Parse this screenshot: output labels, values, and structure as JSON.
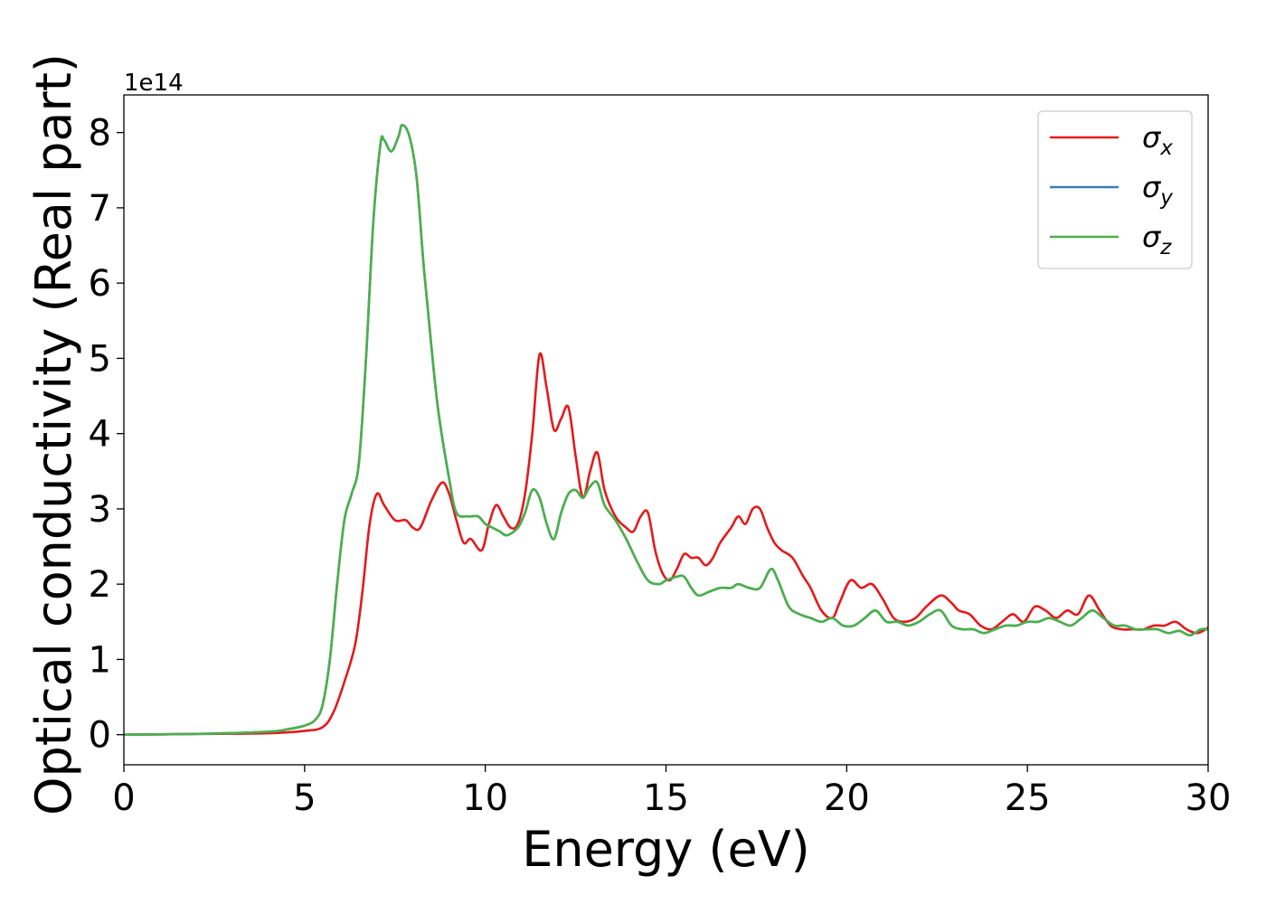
{
  "chart_data": {
    "type": "line",
    "xlabel": "Energy (eV)",
    "ylabel": "Optical conductivity (Real part)",
    "y_offset_label": "1e14",
    "xlim": [
      0,
      30
    ],
    "ylim": [
      -0.4,
      8.5
    ],
    "xticks": [
      0,
      5,
      10,
      15,
      20,
      25,
      30
    ],
    "yticks": [
      0,
      1,
      2,
      3,
      4,
      5,
      6,
      7,
      8
    ],
    "grid": false,
    "legend_position": "top-right",
    "series": [
      {
        "name": "σx",
        "legend_base": "σ",
        "legend_sub": "x",
        "color": "#e41a1c",
        "x": [
          0,
          2,
          4,
          5,
          5.5,
          5.8,
          6.1,
          6.4,
          6.6,
          6.8,
          7.0,
          7.2,
          7.5,
          7.8,
          8.0,
          8.2,
          8.5,
          8.8,
          9.0,
          9.2,
          9.4,
          9.6,
          9.9,
          10.1,
          10.3,
          10.5,
          10.7,
          10.9,
          11.1,
          11.3,
          11.5,
          11.7,
          11.9,
          12.1,
          12.3,
          12.5,
          12.7,
          12.9,
          13.1,
          13.3,
          13.6,
          13.9,
          14.1,
          14.3,
          14.5,
          14.7,
          14.9,
          15.1,
          15.3,
          15.5,
          15.7,
          15.9,
          16.1,
          16.3,
          16.5,
          16.8,
          17.0,
          17.2,
          17.4,
          17.6,
          17.8,
          18.0,
          18.2,
          18.5,
          18.8,
          19.0,
          19.3,
          19.6,
          19.8,
          20.1,
          20.4,
          20.7,
          21.0,
          21.3,
          21.6,
          21.9,
          22.2,
          22.6,
          22.9,
          23.1,
          23.4,
          23.7,
          24.0,
          24.3,
          24.6,
          24.9,
          25.2,
          25.5,
          25.8,
          26.1,
          26.4,
          26.7,
          27.0,
          27.3,
          27.6,
          27.9,
          28.2,
          28.5,
          28.8,
          29.1,
          29.4,
          29.7,
          30.0
        ],
        "y": [
          0,
          0.01,
          0.02,
          0.05,
          0.1,
          0.3,
          0.7,
          1.2,
          1.9,
          2.8,
          3.2,
          3.05,
          2.85,
          2.85,
          2.75,
          2.75,
          3.1,
          3.35,
          3.2,
          2.85,
          2.55,
          2.6,
          2.45,
          2.8,
          3.05,
          2.9,
          2.75,
          2.8,
          3.2,
          4.0,
          5.05,
          4.6,
          4.05,
          4.2,
          4.35,
          3.7,
          3.15,
          3.5,
          3.75,
          3.25,
          2.9,
          2.75,
          2.7,
          2.9,
          2.95,
          2.45,
          2.15,
          2.05,
          2.2,
          2.4,
          2.35,
          2.35,
          2.25,
          2.35,
          2.55,
          2.75,
          2.9,
          2.8,
          3.0,
          3.0,
          2.75,
          2.55,
          2.45,
          2.35,
          2.1,
          1.95,
          1.65,
          1.55,
          1.75,
          2.05,
          1.95,
          2.0,
          1.8,
          1.55,
          1.5,
          1.55,
          1.7,
          1.85,
          1.75,
          1.65,
          1.6,
          1.45,
          1.4,
          1.5,
          1.6,
          1.5,
          1.7,
          1.65,
          1.55,
          1.65,
          1.6,
          1.85,
          1.65,
          1.45,
          1.4,
          1.4,
          1.4,
          1.45,
          1.45,
          1.5,
          1.4,
          1.35,
          1.42
        ]
      },
      {
        "name": "σy",
        "legend_base": "σ",
        "legend_sub": "y",
        "color": "#377eb8",
        "x": [
          0,
          2,
          4,
          4.5,
          5,
          5.3,
          5.5,
          5.7,
          5.9,
          6.1,
          6.3,
          6.5,
          6.7,
          6.9,
          7.1,
          7.2,
          7.4,
          7.6,
          7.7,
          7.9,
          8.1,
          8.3,
          8.5,
          8.7,
          9.0,
          9.2,
          9.5,
          9.8,
          10.0,
          10.2,
          10.4,
          10.6,
          10.9,
          11.1,
          11.3,
          11.5,
          11.7,
          11.9,
          12.1,
          12.3,
          12.5,
          12.7,
          12.9,
          13.1,
          13.3,
          13.6,
          13.9,
          14.2,
          14.5,
          14.8,
          15.0,
          15.3,
          15.5,
          15.7,
          15.9,
          16.2,
          16.5,
          16.8,
          17.0,
          17.3,
          17.6,
          17.9,
          18.1,
          18.4,
          18.7,
          19.0,
          19.3,
          19.6,
          19.9,
          20.2,
          20.5,
          20.8,
          21.1,
          21.4,
          21.7,
          22.0,
          22.3,
          22.6,
          22.9,
          23.2,
          23.5,
          23.8,
          24.1,
          24.4,
          24.7,
          25.0,
          25.3,
          25.6,
          25.9,
          26.2,
          26.5,
          26.8,
          27.1,
          27.4,
          27.7,
          28.0,
          28.3,
          28.6,
          28.9,
          29.2,
          29.5,
          29.8,
          30.0
        ],
        "y": [
          0,
          0.01,
          0.04,
          0.07,
          0.12,
          0.2,
          0.4,
          1.0,
          2.0,
          2.85,
          3.2,
          3.6,
          5.0,
          6.8,
          7.85,
          7.9,
          7.75,
          7.95,
          8.1,
          7.95,
          7.4,
          6.2,
          5.2,
          4.3,
          3.4,
          2.95,
          2.9,
          2.9,
          2.8,
          2.75,
          2.7,
          2.65,
          2.75,
          2.95,
          3.25,
          3.15,
          2.8,
          2.6,
          2.95,
          3.2,
          3.25,
          3.15,
          3.3,
          3.35,
          3.05,
          2.85,
          2.6,
          2.3,
          2.05,
          2.0,
          2.05,
          2.1,
          2.1,
          1.95,
          1.85,
          1.9,
          1.95,
          1.95,
          2.0,
          1.95,
          1.95,
          2.2,
          2.05,
          1.7,
          1.6,
          1.55,
          1.5,
          1.55,
          1.45,
          1.45,
          1.55,
          1.65,
          1.5,
          1.5,
          1.45,
          1.5,
          1.6,
          1.65,
          1.45,
          1.4,
          1.4,
          1.35,
          1.4,
          1.45,
          1.45,
          1.5,
          1.5,
          1.55,
          1.5,
          1.45,
          1.55,
          1.65,
          1.55,
          1.45,
          1.45,
          1.4,
          1.4,
          1.4,
          1.35,
          1.38,
          1.32,
          1.4,
          1.4
        ]
      },
      {
        "name": "σz",
        "legend_base": "σ",
        "legend_sub": "z",
        "color": "#4daf4a",
        "x": [
          0,
          2,
          4,
          4.5,
          5,
          5.3,
          5.5,
          5.7,
          5.9,
          6.1,
          6.3,
          6.5,
          6.7,
          6.9,
          7.1,
          7.2,
          7.4,
          7.6,
          7.7,
          7.9,
          8.1,
          8.3,
          8.5,
          8.7,
          9.0,
          9.2,
          9.5,
          9.8,
          10.0,
          10.2,
          10.4,
          10.6,
          10.9,
          11.1,
          11.3,
          11.5,
          11.7,
          11.9,
          12.1,
          12.3,
          12.5,
          12.7,
          12.9,
          13.1,
          13.3,
          13.6,
          13.9,
          14.2,
          14.5,
          14.8,
          15.0,
          15.3,
          15.5,
          15.7,
          15.9,
          16.2,
          16.5,
          16.8,
          17.0,
          17.3,
          17.6,
          17.9,
          18.1,
          18.4,
          18.7,
          19.0,
          19.3,
          19.6,
          19.9,
          20.2,
          20.5,
          20.8,
          21.1,
          21.4,
          21.7,
          22.0,
          22.3,
          22.6,
          22.9,
          23.2,
          23.5,
          23.8,
          24.1,
          24.4,
          24.7,
          25.0,
          25.3,
          25.6,
          25.9,
          26.2,
          26.5,
          26.8,
          27.1,
          27.4,
          27.7,
          28.0,
          28.3,
          28.6,
          28.9,
          29.2,
          29.5,
          29.8,
          30.0
        ],
        "y": [
          0,
          0.01,
          0.04,
          0.07,
          0.12,
          0.2,
          0.4,
          1.0,
          2.0,
          2.85,
          3.2,
          3.6,
          5.0,
          6.8,
          7.85,
          7.9,
          7.75,
          7.95,
          8.1,
          7.95,
          7.4,
          6.2,
          5.2,
          4.3,
          3.4,
          2.95,
          2.9,
          2.9,
          2.8,
          2.75,
          2.7,
          2.65,
          2.75,
          2.95,
          3.25,
          3.15,
          2.8,
          2.6,
          2.95,
          3.2,
          3.25,
          3.15,
          3.3,
          3.35,
          3.05,
          2.85,
          2.6,
          2.3,
          2.05,
          2.0,
          2.05,
          2.1,
          2.1,
          1.95,
          1.85,
          1.9,
          1.95,
          1.95,
          2.0,
          1.95,
          1.95,
          2.2,
          2.05,
          1.7,
          1.6,
          1.55,
          1.5,
          1.55,
          1.45,
          1.45,
          1.55,
          1.65,
          1.5,
          1.5,
          1.45,
          1.5,
          1.6,
          1.65,
          1.45,
          1.4,
          1.4,
          1.35,
          1.4,
          1.45,
          1.45,
          1.5,
          1.5,
          1.55,
          1.5,
          1.45,
          1.55,
          1.65,
          1.55,
          1.45,
          1.45,
          1.4,
          1.4,
          1.4,
          1.35,
          1.38,
          1.32,
          1.4,
          1.4
        ]
      }
    ]
  }
}
